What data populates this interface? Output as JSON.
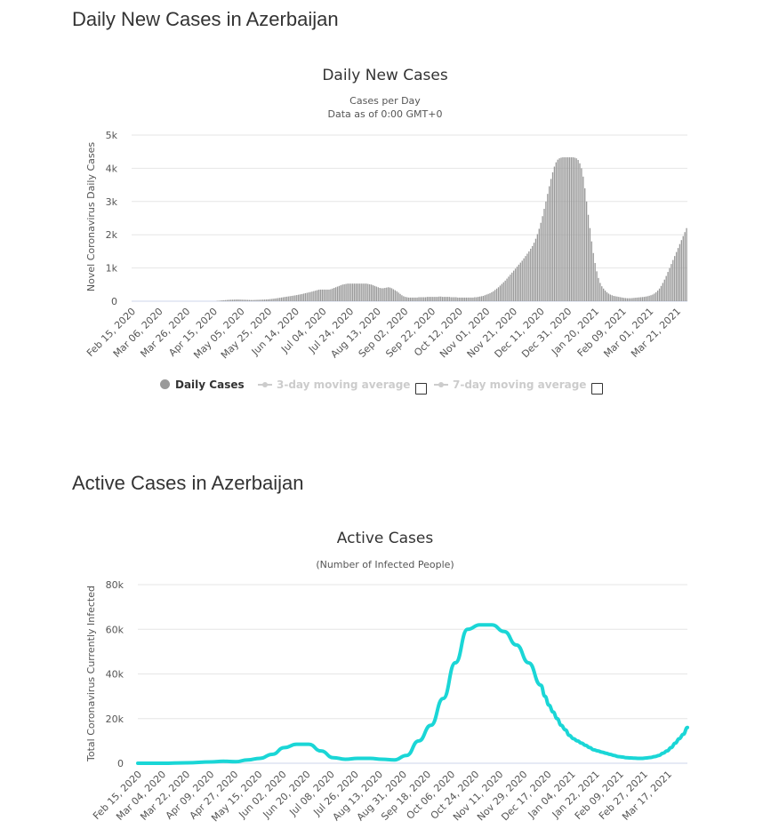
{
  "sections": {
    "daily_title": "Daily New Cases in Azerbaijan",
    "active_title": "Active Cases in Azerbaijan"
  },
  "colors": {
    "bar": "#999999",
    "line": "#1ad6d6",
    "grid": "#e6e6e6"
  },
  "chart_data": [
    {
      "type": "bar",
      "title": "Daily New Cases",
      "subtitle": "Cases per Day",
      "subtitle2": "Data as of 0:00 GMT+0",
      "ylabel": "Novel Coronavirus Daily Cases",
      "xlabel": "",
      "ylim": [
        0,
        5000
      ],
      "yticks": [
        0,
        1000,
        2000,
        3000,
        4000,
        5000
      ],
      "ytick_labels": [
        "0",
        "1k",
        "2k",
        "3k",
        "4k",
        "5k"
      ],
      "xtick_labels": [
        "Feb 15, 2020",
        "Mar 06, 2020",
        "Mar 26, 2020",
        "Apr 15, 2020",
        "May 05, 2020",
        "May 25, 2020",
        "Jun 14, 2020",
        "Jul 04, 2020",
        "Jul 24, 2020",
        "Aug 13, 2020",
        "Sep 02, 2020",
        "Sep 22, 2020",
        "Oct 12, 2020",
        "Nov 01, 2020",
        "Nov 21, 2020",
        "Dec 11, 2020",
        "Dec 31, 2020",
        "Jan 20, 2021",
        "Feb 09, 2021",
        "Mar 01, 2021",
        "Mar 21, 2021"
      ],
      "series": [
        {
          "name": "Daily Cases",
          "values": [
            0,
            0,
            0,
            0,
            0,
            0,
            0,
            0,
            0,
            0,
            0,
            0,
            0,
            0,
            0,
            0,
            0,
            0,
            0,
            0,
            0,
            0,
            0,
            0,
            0,
            0,
            0,
            0,
            0,
            0,
            0,
            0,
            0,
            0,
            0,
            0,
            0,
            0,
            0,
            0,
            0,
            0,
            0,
            0,
            0,
            0,
            0,
            0,
            0,
            0,
            10,
            14,
            20,
            26,
            30,
            34,
            38,
            42,
            44,
            46,
            48,
            50,
            52,
            50,
            48,
            46,
            44,
            42,
            40,
            38,
            36,
            36,
            38,
            40,
            42,
            44,
            46,
            48,
            50,
            52,
            56,
            62,
            68,
            74,
            80,
            88,
            96,
            104,
            112,
            120,
            128,
            136,
            144,
            152,
            160,
            168,
            176,
            186,
            196,
            206,
            216,
            228,
            240,
            252,
            264,
            276,
            290,
            304,
            318,
            332,
            346,
            350,
            350,
            350,
            350,
            350,
            350,
            360,
            380,
            400,
            420,
            440,
            460,
            480,
            500,
            510,
            520,
            530,
            530,
            530,
            530,
            530,
            530,
            530,
            530,
            530,
            530,
            530,
            530,
            520,
            510,
            500,
            480,
            460,
            440,
            420,
            400,
            390,
            390,
            400,
            410,
            420,
            410,
            390,
            360,
            330,
            300,
            260,
            220,
            180,
            150,
            130,
            120,
            110,
            110,
            110,
            110,
            110,
            110,
            120,
            120,
            120,
            120,
            120,
            130,
            130,
            130,
            130,
            130,
            130,
            130,
            140,
            140,
            130,
            130,
            130,
            130,
            130,
            120,
            120,
            120,
            120,
            110,
            110,
            110,
            110,
            110,
            110,
            110,
            110,
            110,
            110,
            120,
            120,
            130,
            140,
            150,
            160,
            180,
            200,
            220,
            240,
            270,
            300,
            340,
            380,
            420,
            470,
            520,
            570,
            620,
            680,
            740,
            800,
            860,
            920,
            980,
            1040,
            1100,
            1160,
            1220,
            1290,
            1360,
            1430,
            1500,
            1580,
            1660,
            1760,
            1880,
            2020,
            2180,
            2360,
            2560,
            2780,
            3000,
            3230,
            3460,
            3680,
            3880,
            4050,
            4180,
            4260,
            4300,
            4320,
            4330,
            4330,
            4330,
            4330,
            4330,
            4330,
            4330,
            4320,
            4300,
            4250,
            4150,
            4000,
            3750,
            3400,
            3000,
            2600,
            2200,
            1800,
            1450,
            1150,
            900,
            700,
            550,
            450,
            380,
            320,
            270,
            230,
            200,
            180,
            160,
            150,
            140,
            130,
            120,
            110,
            100,
            95,
            90,
            90,
            90,
            95,
            100,
            105,
            110,
            115,
            120,
            125,
            130,
            140,
            150,
            165,
            180,
            200,
            230,
            270,
            320,
            380,
            460,
            550,
            650,
            760,
            880,
            1000,
            1120,
            1240,
            1360,
            1480,
            1600,
            1720,
            1840,
            1960,
            2080,
            2200
          ]
        }
      ],
      "legend": [
        {
          "label": "Daily Cases",
          "state": "active"
        },
        {
          "label": "3-day moving average",
          "state": "hidden"
        },
        {
          "label": "7-day moving average",
          "state": "hidden"
        }
      ]
    },
    {
      "type": "line",
      "title": "Active Cases",
      "subtitle": "(Number of Infected People)",
      "ylabel": "Total Coronavirus Currently Infected",
      "xlabel": "",
      "ylim": [
        0,
        80000
      ],
      "yticks": [
        0,
        20000,
        40000,
        60000,
        80000
      ],
      "ytick_labels": [
        "0",
        "20k",
        "40k",
        "60k",
        "80k"
      ],
      "xtick_labels": [
        "Feb 15, 2020",
        "Mar 04, 2020",
        "Mar 22, 2020",
        "Apr 09, 2020",
        "Apr 27, 2020",
        "May 15, 2020",
        "Jun 02, 2020",
        "Jun 20, 2020",
        "Jul 08, 2020",
        "Jul 26, 2020",
        "Aug 13, 2020",
        "Aug 31, 2020",
        "Sep 18, 2020",
        "Oct 06, 2020",
        "Oct 24, 2020",
        "Nov 11, 2020",
        "Nov 29, 2020",
        "Dec 17, 2020",
        "Jan 04, 2021",
        "Jan 22, 2021",
        "Feb 09, 2021",
        "Feb 27, 2021",
        "Mar 17, 2021"
      ],
      "x": [
        0,
        18,
        36,
        54,
        63,
        72,
        81,
        90,
        99,
        108,
        117,
        126,
        135,
        144,
        153,
        162,
        171,
        180,
        189,
        198,
        207,
        216,
        225,
        234,
        243,
        252,
        261,
        270,
        279,
        288,
        297,
        300,
        303,
        306,
        309,
        312,
        315,
        318,
        321,
        324,
        327,
        330,
        333,
        336,
        339,
        342,
        345,
        348,
        351,
        354,
        357,
        360,
        363,
        366,
        369,
        372,
        375,
        378,
        381,
        384,
        387,
        390,
        393,
        396,
        399,
        402,
        405
      ],
      "series": [
        {
          "name": "Active Cases",
          "values": [
            0,
            0,
            200,
            600,
            900,
            700,
            1500,
            2200,
            4000,
            7000,
            8500,
            8500,
            5500,
            2500,
            1800,
            2200,
            2200,
            1800,
            1500,
            3500,
            10000,
            17000,
            29000,
            45000,
            60000,
            62000,
            62000,
            59000,
            53000,
            45000,
            35000,
            30000,
            26000,
            23000,
            20000,
            17000,
            15000,
            12500,
            11000,
            10000,
            9000,
            8000,
            7000,
            6000,
            5500,
            5000,
            4500,
            4000,
            3500,
            3000,
            2800,
            2500,
            2400,
            2300,
            2200,
            2200,
            2400,
            2600,
            3000,
            3500,
            4500,
            5500,
            7000,
            9000,
            11000,
            13000,
            16000
          ]
        }
      ]
    }
  ]
}
